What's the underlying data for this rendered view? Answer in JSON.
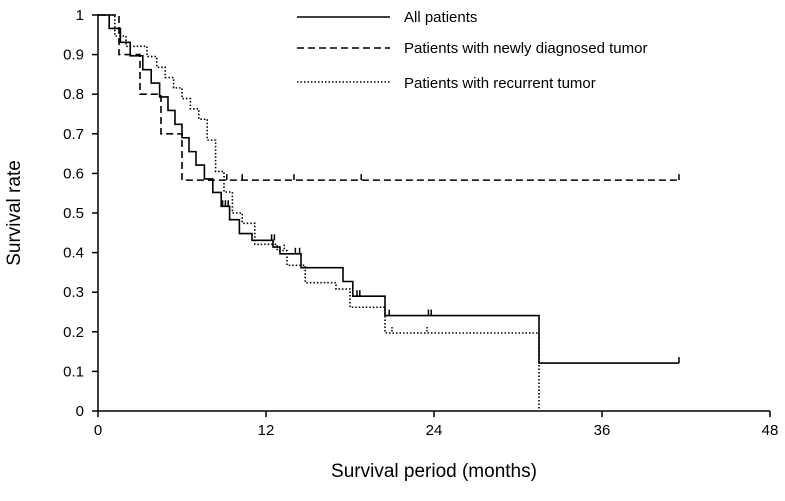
{
  "chart_data": {
    "type": "line",
    "subtype": "kaplan-meier-step",
    "title": "",
    "xlabel": "Survival period (months)",
    "ylabel": "Survival rate",
    "xlim": [
      0,
      48
    ],
    "ylim": [
      0,
      1
    ],
    "x_ticks": [
      0,
      12,
      24,
      36,
      48
    ],
    "y_ticks": [
      0,
      0.1,
      0.2,
      0.3,
      0.4,
      0.5,
      0.6,
      0.7,
      0.8,
      0.9,
      1
    ],
    "x_tick_labels": [
      "0",
      "12",
      "24",
      "36",
      "48"
    ],
    "y_tick_labels": [
      "0",
      "0.1",
      "0.2",
      "0.3",
      "0.4",
      "0.5",
      "0.6",
      "0.7",
      "0.8",
      "0.9",
      "1"
    ],
    "grid": false,
    "legend_position": "top-right",
    "series": [
      {
        "name": "All patients",
        "style": "solid",
        "x": [
          0,
          0.8,
          1.6,
          2.3,
          3.2,
          3.8,
          4.4,
          5.0,
          5.5,
          6.0,
          6.5,
          7.0,
          7.6,
          8.2,
          8.8,
          9.4,
          10.1,
          11.0,
          12.5,
          13.0,
          14.5,
          17.5,
          18.2,
          20.5,
          31.5,
          41.5
        ],
        "y": [
          1.0,
          0.966,
          0.931,
          0.897,
          0.862,
          0.828,
          0.793,
          0.759,
          0.724,
          0.69,
          0.655,
          0.621,
          0.586,
          0.552,
          0.517,
          0.483,
          0.448,
          0.431,
          0.414,
          0.397,
          0.362,
          0.327,
          0.29,
          0.241,
          0.121,
          0.121
        ],
        "censored_x": [
          8.9,
          9.1,
          9.3,
          12.4,
          12.6,
          14.1,
          14.4,
          18.5,
          18.7,
          20.8,
          23.6,
          23.8,
          41.5
        ],
        "censored_y": [
          0.517,
          0.517,
          0.517,
          0.431,
          0.431,
          0.397,
          0.397,
          0.29,
          0.29,
          0.241,
          0.241,
          0.241,
          0.121
        ]
      },
      {
        "name": "Patients with newly diagnosed tumor",
        "style": "dashed",
        "x": [
          0,
          1.5,
          3.0,
          4.5,
          6.0,
          41.5
        ],
        "y": [
          1.0,
          0.9,
          0.8,
          0.7,
          0.583,
          0.583
        ],
        "censored_x": [
          9.2,
          10.3,
          14.0,
          18.8,
          41.5
        ],
        "censored_y": [
          0.583,
          0.583,
          0.583,
          0.583,
          0.583
        ]
      },
      {
        "name": "Patients with recurrent tumor",
        "style": "dotted",
        "x": [
          0,
          1.2,
          2.0,
          3.5,
          4.2,
          4.8,
          5.4,
          6.0,
          6.6,
          7.2,
          7.8,
          8.4,
          9.0,
          9.6,
          10.3,
          11.2,
          12.8,
          13.5,
          14.8,
          17.0,
          18.0,
          20.5,
          31.5
        ],
        "y": [
          1.0,
          0.947,
          0.921,
          0.895,
          0.868,
          0.842,
          0.816,
          0.789,
          0.763,
          0.737,
          0.684,
          0.605,
          0.553,
          0.5,
          0.474,
          0.421,
          0.405,
          0.368,
          0.324,
          0.308,
          0.262,
          0.197,
          0.0
        ],
        "censored_x": [
          13.3,
          21.0,
          23.5
        ],
        "censored_y": [
          0.405,
          0.197,
          0.197
        ]
      }
    ]
  }
}
